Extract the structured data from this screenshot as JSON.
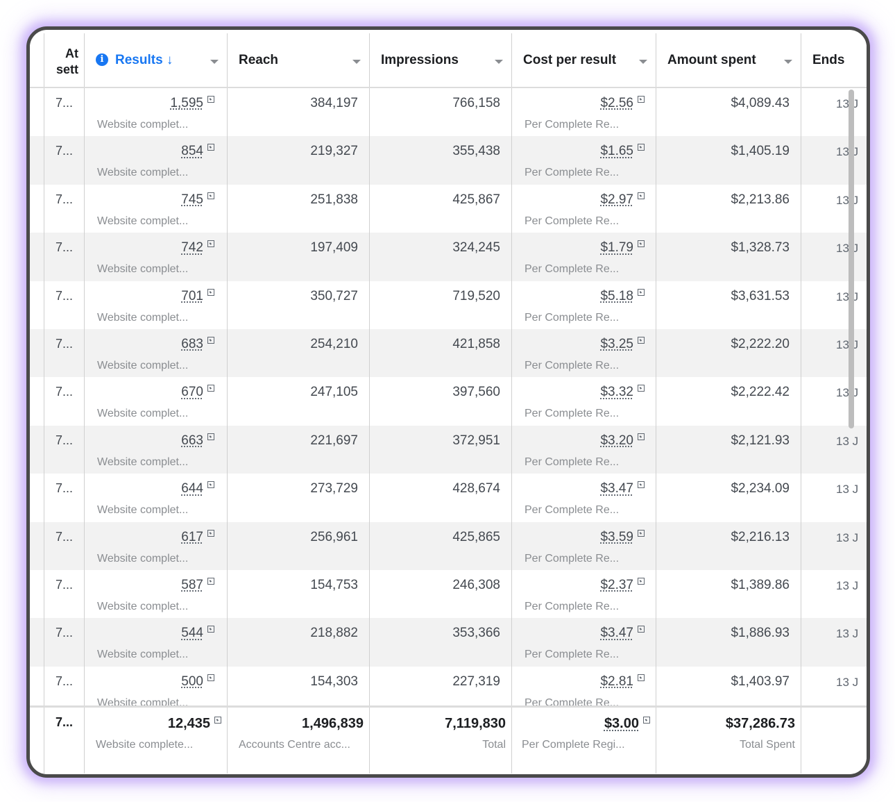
{
  "header": {
    "at_col": "At sett",
    "results": "Results",
    "reach": "Reach",
    "impressions": "Impressions",
    "cost_per_result": "Cost per result",
    "amount_spent": "Amount spent",
    "ends": "Ends"
  },
  "rows": [
    {
      "idx": "7...",
      "results": "1,595",
      "results_sub": "Website complet...",
      "reach": "384,197",
      "impressions": "766,158",
      "cpr": "$2.56",
      "cpr_sub": "Per Complete Re...",
      "spent": "$4,089.43",
      "ends": "13 J"
    },
    {
      "idx": "7...",
      "results": "854",
      "results_sub": "Website complet...",
      "reach": "219,327",
      "impressions": "355,438",
      "cpr": "$1.65",
      "cpr_sub": "Per Complete Re...",
      "spent": "$1,405.19",
      "ends": "13 J"
    },
    {
      "idx": "7...",
      "results": "745",
      "results_sub": "Website complet...",
      "reach": "251,838",
      "impressions": "425,867",
      "cpr": "$2.97",
      "cpr_sub": "Per Complete Re...",
      "spent": "$2,213.86",
      "ends": "13 J"
    },
    {
      "idx": "7...",
      "results": "742",
      "results_sub": "Website complet...",
      "reach": "197,409",
      "impressions": "324,245",
      "cpr": "$1.79",
      "cpr_sub": "Per Complete Re...",
      "spent": "$1,328.73",
      "ends": "13 J"
    },
    {
      "idx": "7...",
      "results": "701",
      "results_sub": "Website complet...",
      "reach": "350,727",
      "impressions": "719,520",
      "cpr": "$5.18",
      "cpr_sub": "Per Complete Re...",
      "spent": "$3,631.53",
      "ends": "13 J"
    },
    {
      "idx": "7...",
      "results": "683",
      "results_sub": "Website complet...",
      "reach": "254,210",
      "impressions": "421,858",
      "cpr": "$3.25",
      "cpr_sub": "Per Complete Re...",
      "spent": "$2,222.20",
      "ends": "13 J"
    },
    {
      "idx": "7...",
      "results": "670",
      "results_sub": "Website complet...",
      "reach": "247,105",
      "impressions": "397,560",
      "cpr": "$3.32",
      "cpr_sub": "Per Complete Re...",
      "spent": "$2,222.42",
      "ends": "13 J"
    },
    {
      "idx": "7...",
      "results": "663",
      "results_sub": "Website complet...",
      "reach": "221,697",
      "impressions": "372,951",
      "cpr": "$3.20",
      "cpr_sub": "Per Complete Re...",
      "spent": "$2,121.93",
      "ends": "13 J"
    },
    {
      "idx": "7...",
      "results": "644",
      "results_sub": "Website complet...",
      "reach": "273,729",
      "impressions": "428,674",
      "cpr": "$3.47",
      "cpr_sub": "Per Complete Re...",
      "spent": "$2,234.09",
      "ends": "13 J"
    },
    {
      "idx": "7...",
      "results": "617",
      "results_sub": "Website complet...",
      "reach": "256,961",
      "impressions": "425,865",
      "cpr": "$3.59",
      "cpr_sub": "Per Complete Re...",
      "spent": "$2,216.13",
      "ends": "13 J"
    },
    {
      "idx": "7...",
      "results": "587",
      "results_sub": "Website complet...",
      "reach": "154,753",
      "impressions": "246,308",
      "cpr": "$2.37",
      "cpr_sub": "Per Complete Re...",
      "spent": "$1,389.86",
      "ends": "13 J"
    },
    {
      "idx": "7...",
      "results": "544",
      "results_sub": "Website complet...",
      "reach": "218,882",
      "impressions": "353,366",
      "cpr": "$3.47",
      "cpr_sub": "Per Complete Re...",
      "spent": "$1,886.93",
      "ends": "13 J"
    },
    {
      "idx": "7...",
      "results": "500",
      "results_sub": "Website complet...",
      "reach": "154,303",
      "impressions": "227,319",
      "cpr": "$2.81",
      "cpr_sub": "Per Complete Re...",
      "spent": "$1,403.97",
      "ends": "13 J"
    }
  ],
  "totals": {
    "idx": "7...",
    "results": "12,435",
    "results_sub": "Website complete...",
    "reach": "1,496,839",
    "reach_sub": "Accounts Centre acc...",
    "impressions": "7,119,830",
    "impressions_sub": "Total",
    "cpr": "$3.00",
    "cpr_sub": "Per Complete Regi...",
    "spent": "$37,286.73",
    "spent_sub": "Total Spent"
  },
  "colors": {
    "accent": "#1877f2",
    "frame_glow": "#b08ef5",
    "alt_row": "#f2f2f2"
  }
}
